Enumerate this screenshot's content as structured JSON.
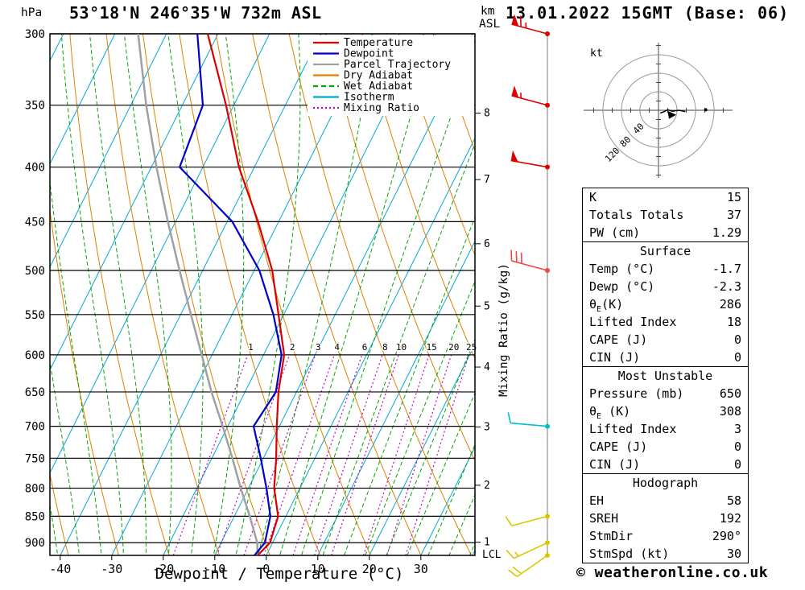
{
  "header": {
    "station": "53°18'N 246°35'W 732m ASL",
    "datetime": "13.01.2022 15GMT (Base: 06)"
  },
  "axes": {
    "pressure_unit": "hPa",
    "altitude_unit_km": "km",
    "altitude_unit_asl": "ASL",
    "x_label": "Dewpoint / Temperature (°C)",
    "right_label": "Mixing Ratio (g/kg)",
    "lcl_label": "LCL",
    "pressure_ticks": [
      300,
      350,
      400,
      450,
      500,
      550,
      600,
      650,
      700,
      750,
      800,
      850,
      900
    ],
    "temp_ticks": [
      -40,
      -30,
      -20,
      -10,
      0,
      10,
      20,
      30
    ],
    "km_ticks": [
      [
        8,
        356
      ],
      [
        7,
        411
      ],
      [
        6,
        472
      ],
      [
        5,
        540
      ],
      [
        4,
        616
      ],
      [
        3,
        701
      ],
      [
        2,
        795
      ],
      [
        1,
        899
      ]
    ]
  },
  "legend": [
    {
      "label": "Temperature",
      "color": "#d80000",
      "style": "solid"
    },
    {
      "label": "Dewpoint",
      "color": "#0000c8",
      "style": "solid"
    },
    {
      "label": "Parcel Trajectory",
      "color": "#a0a0a0",
      "style": "solid"
    },
    {
      "label": "Dry Adiabat",
      "color": "#e08000",
      "style": "solid"
    },
    {
      "label": "Wet Adiabat",
      "color": "#00a800",
      "style": "dashed"
    },
    {
      "label": "Isotherm",
      "color": "#00a8d8",
      "style": "solid"
    },
    {
      "label": "Mixing Ratio",
      "color": "#c800c8",
      "style": "dotted"
    }
  ],
  "chart_data": {
    "type": "skewt-log-p",
    "pressure_range": [
      300,
      925
    ],
    "temp_axis_range": [
      -42,
      40.5
    ],
    "mixing_ratio_lines": [
      1,
      2,
      3,
      4,
      6,
      8,
      10,
      15,
      20,
      25
    ],
    "colors": {
      "temperature": "#d80000",
      "dewpoint": "#0000c8",
      "parcel": "#a0a0a0",
      "dry_adiabat": "#e08000",
      "wet_adiabat": "#00a800",
      "isotherm": "#00a8d8",
      "mixing_ratio": "#c800c8"
    },
    "temperature_profile": [
      [
        925,
        -1.7
      ],
      [
        900,
        -0.5
      ],
      [
        850,
        -1.5
      ],
      [
        800,
        -5
      ],
      [
        750,
        -7.5
      ],
      [
        700,
        -10.5
      ],
      [
        650,
        -13.5
      ],
      [
        600,
        -16
      ],
      [
        550,
        -21
      ],
      [
        500,
        -26.5
      ],
      [
        450,
        -34
      ],
      [
        400,
        -43
      ],
      [
        350,
        -51.5
      ],
      [
        300,
        -62
      ]
    ],
    "dewpoint_profile": [
      [
        925,
        -2.3
      ],
      [
        900,
        -1.5
      ],
      [
        850,
        -3
      ],
      [
        800,
        -6.5
      ],
      [
        750,
        -10.5
      ],
      [
        700,
        -15
      ],
      [
        650,
        -14
      ],
      [
        600,
        -16.5
      ],
      [
        550,
        -22
      ],
      [
        500,
        -29
      ],
      [
        450,
        -39
      ],
      [
        400,
        -54.5
      ],
      [
        350,
        -56
      ],
      [
        300,
        -64
      ]
    ],
    "parcel_profile": [
      [
        925,
        -1.7
      ],
      [
        900,
        -3
      ],
      [
        850,
        -7
      ],
      [
        800,
        -11.5
      ],
      [
        750,
        -16
      ],
      [
        700,
        -21
      ],
      [
        650,
        -26.5
      ],
      [
        600,
        -32
      ],
      [
        550,
        -38
      ],
      [
        500,
        -44.5
      ],
      [
        450,
        -51.5
      ],
      [
        400,
        -59
      ],
      [
        350,
        -67
      ],
      [
        300,
        -75.5
      ]
    ],
    "wind_barbs": [
      {
        "pressure": 300,
        "speed_kt": 65,
        "dir_deg": 285,
        "color": "#e00000"
      },
      {
        "pressure": 350,
        "speed_kt": 55,
        "dir_deg": 285,
        "color": "#e00000"
      },
      {
        "pressure": 400,
        "speed_kt": 50,
        "dir_deg": 280,
        "color": "#e00000"
      },
      {
        "pressure": 500,
        "speed_kt": 30,
        "dir_deg": 285,
        "color": "#f04848"
      },
      {
        "pressure": 700,
        "speed_kt": 10,
        "dir_deg": 275,
        "color": "#00c0c8"
      },
      {
        "pressure": 850,
        "speed_kt": 10,
        "dir_deg": 255,
        "color": "#d8c800"
      },
      {
        "pressure": 900,
        "speed_kt": 15,
        "dir_deg": 245,
        "color": "#d8c800"
      },
      {
        "pressure": 925,
        "speed_kt": 20,
        "dir_deg": 235,
        "color": "#d8c800"
      }
    ]
  },
  "hodograph": {
    "unit": "kt",
    "rings": [
      40,
      80,
      120
    ],
    "trace_uv": [
      [
        4,
        -6
      ],
      [
        12,
        -3
      ],
      [
        20,
        1
      ],
      [
        30,
        -2
      ],
      [
        44,
        0
      ],
      [
        58,
        -3
      ]
    ],
    "storm_arrow_uv": [
      28,
      -8
    ],
    "marker_uv": [
      102,
      1
    ]
  },
  "table": {
    "sections": [
      {
        "rows": [
          {
            "label": "K",
            "value": "15"
          },
          {
            "label": "Totals Totals",
            "value": "37"
          },
          {
            "label": "PW (cm)",
            "value": "1.29"
          }
        ]
      },
      {
        "title": "Surface",
        "rows": [
          {
            "label": "Temp (°C)",
            "value": "-1.7"
          },
          {
            "label": "Dewp (°C)",
            "value": "-2.3"
          },
          {
            "label": "θ",
            "sub": "E",
            "label2": "(K)",
            "value": "286"
          },
          {
            "label": "Lifted Index",
            "value": "18"
          },
          {
            "label": "CAPE (J)",
            "value": "0"
          },
          {
            "label": "CIN (J)",
            "value": "0"
          }
        ]
      },
      {
        "title": "Most Unstable",
        "rows": [
          {
            "label": "Pressure (mb)",
            "value": "650"
          },
          {
            "label": "θ",
            "sub": "E",
            "label2": " (K)",
            "value": "308"
          },
          {
            "label": "Lifted Index",
            "value": "3"
          },
          {
            "label": "CAPE (J)",
            "value": "0"
          },
          {
            "label": "CIN (J)",
            "value": "0"
          }
        ]
      },
      {
        "title": "Hodograph",
        "rows": [
          {
            "label": "EH",
            "value": "58"
          },
          {
            "label": "SREH",
            "value": "192"
          },
          {
            "label": "StmDir",
            "value": "290°"
          },
          {
            "label": "StmSpd (kt)",
            "value": "30"
          }
        ]
      }
    ]
  },
  "footer": {
    "copyright": "© weatheronline.co.uk"
  }
}
